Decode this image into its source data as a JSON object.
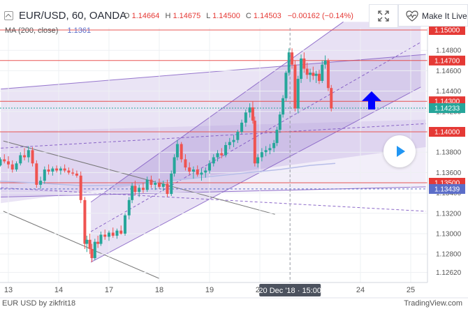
{
  "header": {
    "symbol": "EUR/USD, 60, OANDA",
    "ohlc": {
      "o_label": "O",
      "o": "1.14664",
      "h_label": "H",
      "h": "1.14675",
      "l_label": "L",
      "l": "1.14500",
      "c_label": "C",
      "c": "1.14503",
      "change": "−0.00162 (−0.14%)"
    },
    "ma_label": "MA (200, close)",
    "ma_value": "1.1361",
    "make_live": "Make It Live"
  },
  "footer": {
    "left": "EUR USD by zikfrit18",
    "right": "TradingView.com"
  },
  "colors": {
    "up": "#26a69a",
    "down": "#ef5350",
    "channel": "#7e57c2",
    "level": "#e53935",
    "current": "#26a69a",
    "arrow": "#0000ff"
  },
  "chart_data": {
    "type": "candlestick",
    "ylim": [
      1.125,
      1.1505
    ],
    "yticks": [
      "1.14800",
      "1.14600",
      "1.14400",
      "1.14200",
      "1.14000",
      "1.13800",
      "1.13600",
      "1.13400",
      "1.13200",
      "1.13000",
      "1.12800",
      "1.12620"
    ],
    "ytick_values": [
      1.148,
      1.146,
      1.144,
      1.142,
      1.14,
      1.138,
      1.136,
      1.134,
      1.132,
      1.13,
      1.128,
      1.1262
    ],
    "xticks": [
      {
        "label": "13",
        "day": 13
      },
      {
        "label": "14",
        "day": 14
      },
      {
        "label": "17",
        "day": 15
      },
      {
        "label": "18",
        "day": 16
      },
      {
        "label": "19",
        "day": 17
      },
      {
        "label": "20",
        "day": 18
      },
      {
        "label": "24",
        "day": 20
      },
      {
        "label": "25",
        "day": 21
      }
    ],
    "cursor_label": "20 Dec '18 · 15:00",
    "cursor_day": 18.6,
    "price_labels": [
      {
        "text": "1.15000",
        "value": 1.15,
        "color": "#e53935"
      },
      {
        "text": "1.14700",
        "value": 1.147,
        "color": "#e53935"
      },
      {
        "text": "1.14300",
        "value": 1.143,
        "color": "#e53935"
      },
      {
        "text": "1.14233",
        "value": 1.14233,
        "color": "#26a69a"
      },
      {
        "text": "1.14000",
        "value": 1.14,
        "color": "#e53935"
      },
      {
        "text": "1.13500",
        "value": 1.135,
        "color": "#e53935"
      },
      {
        "text": "1.13439",
        "value": 1.13439,
        "color": "#5b6dc8"
      }
    ],
    "candles": [
      [
        12.6,
        1.1367,
        1.137,
        1.1362,
        1.1366
      ],
      [
        12.68,
        1.1366,
        1.1372,
        1.1364,
        1.1369
      ],
      [
        12.76,
        1.1369,
        1.1373,
        1.1365,
        1.1367
      ],
      [
        12.84,
        1.1367,
        1.1375,
        1.1366,
        1.1373
      ],
      [
        12.92,
        1.1373,
        1.1378,
        1.1369,
        1.1371
      ],
      [
        13.0,
        1.1371,
        1.1376,
        1.1364,
        1.1368
      ],
      [
        13.08,
        1.1368,
        1.1372,
        1.136,
        1.1363
      ],
      [
        13.16,
        1.1363,
        1.1371,
        1.1361,
        1.1369
      ],
      [
        13.24,
        1.1369,
        1.138,
        1.1367,
        1.1377
      ],
      [
        13.32,
        1.1377,
        1.1384,
        1.1372,
        1.1375
      ],
      [
        13.4,
        1.1375,
        1.1386,
        1.137,
        1.1382
      ],
      [
        13.48,
        1.1382,
        1.1385,
        1.1366,
        1.1369
      ],
      [
        13.56,
        1.1369,
        1.1372,
        1.1345,
        1.1348
      ],
      [
        13.64,
        1.1348,
        1.1356,
        1.1344,
        1.1352
      ],
      [
        13.72,
        1.1352,
        1.1366,
        1.1349,
        1.1363
      ],
      [
        13.8,
        1.1363,
        1.1368,
        1.1358,
        1.1361
      ],
      [
        13.88,
        1.1361,
        1.1366,
        1.1357,
        1.1364
      ],
      [
        13.96,
        1.1364,
        1.1367,
        1.136,
        1.1362
      ],
      [
        14.04,
        1.1362,
        1.1366,
        1.1358,
        1.1364
      ],
      [
        14.12,
        1.1364,
        1.1368,
        1.136,
        1.1362
      ],
      [
        14.2,
        1.1362,
        1.1365,
        1.1358,
        1.136
      ],
      [
        14.28,
        1.136,
        1.1364,
        1.1357,
        1.1359
      ],
      [
        14.36,
        1.1359,
        1.1362,
        1.1355,
        1.1357
      ],
      [
        14.44,
        1.1357,
        1.1361,
        1.133,
        1.1333
      ],
      [
        14.52,
        1.1333,
        1.1336,
        1.1285,
        1.129
      ],
      [
        14.56,
        1.129,
        1.1298,
        1.1282,
        1.1294
      ],
      [
        14.62,
        1.1294,
        1.13,
        1.128,
        1.1285
      ],
      [
        14.66,
        1.1285,
        1.129,
        1.1272,
        1.1276
      ],
      [
        14.72,
        1.1276,
        1.1295,
        1.1274,
        1.1292
      ],
      [
        14.78,
        1.1292,
        1.1298,
        1.1286,
        1.129
      ],
      [
        14.84,
        1.129,
        1.1302,
        1.1288,
        1.1299
      ],
      [
        14.92,
        1.1299,
        1.1304,
        1.1294,
        1.1297
      ],
      [
        15.0,
        1.1297,
        1.1303,
        1.1293,
        1.1301
      ],
      [
        15.08,
        1.1301,
        1.1306,
        1.1296,
        1.1298
      ],
      [
        15.16,
        1.1298,
        1.1305,
        1.1295,
        1.1303
      ],
      [
        15.24,
        1.1303,
        1.1308,
        1.1299,
        1.13
      ],
      [
        15.32,
        1.13,
        1.132,
        1.1298,
        1.1318
      ],
      [
        15.4,
        1.1318,
        1.1336,
        1.1314,
        1.1333
      ],
      [
        15.46,
        1.1333,
        1.135,
        1.133,
        1.1347
      ],
      [
        15.52,
        1.1347,
        1.1352,
        1.1338,
        1.1341
      ],
      [
        15.6,
        1.1341,
        1.1348,
        1.1336,
        1.1345
      ],
      [
        15.68,
        1.1345,
        1.135,
        1.134,
        1.1343
      ],
      [
        15.76,
        1.1343,
        1.1356,
        1.1341,
        1.1353
      ],
      [
        15.84,
        1.1353,
        1.1357,
        1.1345,
        1.1348
      ],
      [
        15.92,
        1.1348,
        1.1352,
        1.1343,
        1.135
      ],
      [
        16.0,
        1.135,
        1.1354,
        1.1344,
        1.1346
      ],
      [
        16.08,
        1.1346,
        1.1352,
        1.1342,
        1.1349
      ],
      [
        16.16,
        1.1349,
        1.1353,
        1.1336,
        1.1339
      ],
      [
        16.24,
        1.1339,
        1.1362,
        1.1337,
        1.1359
      ],
      [
        16.3,
        1.1359,
        1.1378,
        1.1356,
        1.1375
      ],
      [
        16.36,
        1.1375,
        1.1392,
        1.1372,
        1.1388
      ],
      [
        16.44,
        1.1388,
        1.139,
        1.137,
        1.1373
      ],
      [
        16.52,
        1.1373,
        1.1378,
        1.1362,
        1.1365
      ],
      [
        16.6,
        1.1365,
        1.137,
        1.1358,
        1.1361
      ],
      [
        16.68,
        1.1361,
        1.1366,
        1.1354,
        1.1363
      ],
      [
        16.76,
        1.1363,
        1.1367,
        1.1356,
        1.1358
      ],
      [
        16.84,
        1.1358,
        1.1364,
        1.1352,
        1.136
      ],
      [
        16.92,
        1.136,
        1.1365,
        1.1355,
        1.1362
      ],
      [
        17.0,
        1.1362,
        1.1372,
        1.1359,
        1.1369
      ],
      [
        17.08,
        1.1369,
        1.1378,
        1.1366,
        1.1375
      ],
      [
        17.16,
        1.1375,
        1.1382,
        1.1371,
        1.1379
      ],
      [
        17.24,
        1.1379,
        1.1384,
        1.1374,
        1.1377
      ],
      [
        17.32,
        1.1377,
        1.139,
        1.1375,
        1.1387
      ],
      [
        17.4,
        1.1387,
        1.1394,
        1.1383,
        1.139
      ],
      [
        17.48,
        1.139,
        1.1397,
        1.1385,
        1.1392
      ],
      [
        17.56,
        1.1392,
        1.1402,
        1.1389,
        1.14
      ],
      [
        17.64,
        1.14,
        1.1412,
        1.1398,
        1.1409
      ],
      [
        17.72,
        1.1409,
        1.1422,
        1.1405,
        1.1419
      ],
      [
        17.8,
        1.1419,
        1.1428,
        1.1414,
        1.1424
      ],
      [
        17.86,
        1.1424,
        1.143,
        1.1408,
        1.1411
      ],
      [
        17.9,
        1.1411,
        1.1415,
        1.1366,
        1.1369
      ],
      [
        17.96,
        1.1369,
        1.1378,
        1.1365,
        1.1375
      ],
      [
        18.04,
        1.1375,
        1.1384,
        1.1371,
        1.138
      ],
      [
        18.12,
        1.138,
        1.1386,
        1.1376,
        1.1382
      ],
      [
        18.2,
        1.1382,
        1.1388,
        1.1378,
        1.1384
      ],
      [
        18.28,
        1.1384,
        1.1392,
        1.138,
        1.1389
      ],
      [
        18.34,
        1.1389,
        1.1405,
        1.1386,
        1.1402
      ],
      [
        18.4,
        1.1402,
        1.142,
        1.1399,
        1.1417
      ],
      [
        18.46,
        1.1417,
        1.1436,
        1.1414,
        1.1433
      ],
      [
        18.52,
        1.1433,
        1.146,
        1.143,
        1.1458
      ],
      [
        18.58,
        1.1458,
        1.1482,
        1.1455,
        1.1478
      ],
      [
        18.64,
        1.1478,
        1.1482,
        1.1462,
        1.1466
      ],
      [
        18.7,
        1.1466,
        1.147,
        1.142,
        1.1423
      ],
      [
        18.76,
        1.1423,
        1.1455,
        1.1418,
        1.1452
      ],
      [
        18.82,
        1.1452,
        1.1476,
        1.1448,
        1.1472
      ],
      [
        18.88,
        1.1472,
        1.1478,
        1.1458,
        1.1462
      ],
      [
        18.94,
        1.1462,
        1.1468,
        1.1452,
        1.1456
      ],
      [
        19.0,
        1.1456,
        1.1462,
        1.1449,
        1.1458
      ],
      [
        19.06,
        1.1458,
        1.1464,
        1.1451,
        1.1455
      ],
      [
        19.12,
        1.1455,
        1.146,
        1.1448,
        1.1457
      ],
      [
        19.18,
        1.1457,
        1.1461,
        1.1447,
        1.145
      ],
      [
        19.24,
        1.145,
        1.147,
        1.1448,
        1.1466
      ],
      [
        19.3,
        1.1466,
        1.1475,
        1.1462,
        1.147
      ],
      [
        19.36,
        1.147,
        1.1472,
        1.144,
        1.1443
      ],
      [
        19.42,
        1.1443,
        1.1446,
        1.142,
        1.1423
      ]
    ],
    "ma": [
      [
        12.6,
        1.1352
      ],
      [
        13.5,
        1.135
      ],
      [
        14.5,
        1.1347
      ],
      [
        15.5,
        1.1348
      ],
      [
        16.2,
        1.1352
      ],
      [
        17.0,
        1.1356
      ],
      [
        17.8,
        1.136
      ],
      [
        18.4,
        1.1363
      ],
      [
        19.0,
        1.1367
      ],
      [
        19.5,
        1.1369
      ]
    ]
  }
}
